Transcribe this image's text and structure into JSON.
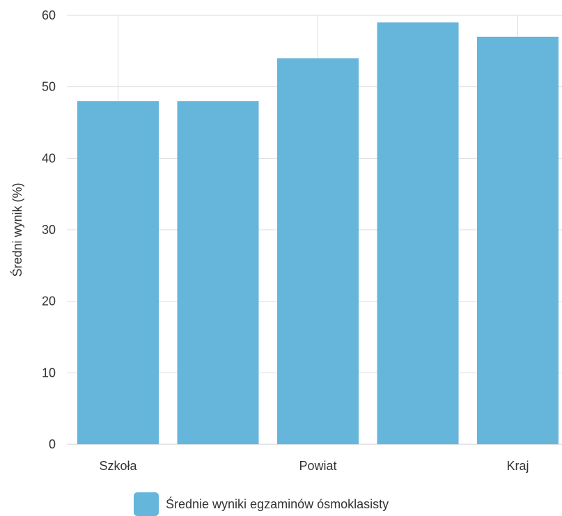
{
  "chart_data": {
    "type": "bar",
    "categories": [
      "Szkoła",
      "",
      "Powiat",
      "",
      "Kraj"
    ],
    "series": [
      {
        "name": "Średnie wyniki egzaminów ósmoklasisty",
        "values": [
          48,
          48,
          54,
          59,
          57
        ]
      }
    ],
    "ylabel": "Średni wynik (%)",
    "xlabel": "",
    "ylim": [
      0,
      60
    ],
    "yticks": [
      0,
      10,
      20,
      30,
      40,
      50,
      60
    ],
    "grid": true,
    "legend_position": "bottom-center",
    "colors": {
      "bar": "#66b5db",
      "grid": "#dddddd",
      "axis": "#cccccc",
      "text": "#333333"
    }
  }
}
